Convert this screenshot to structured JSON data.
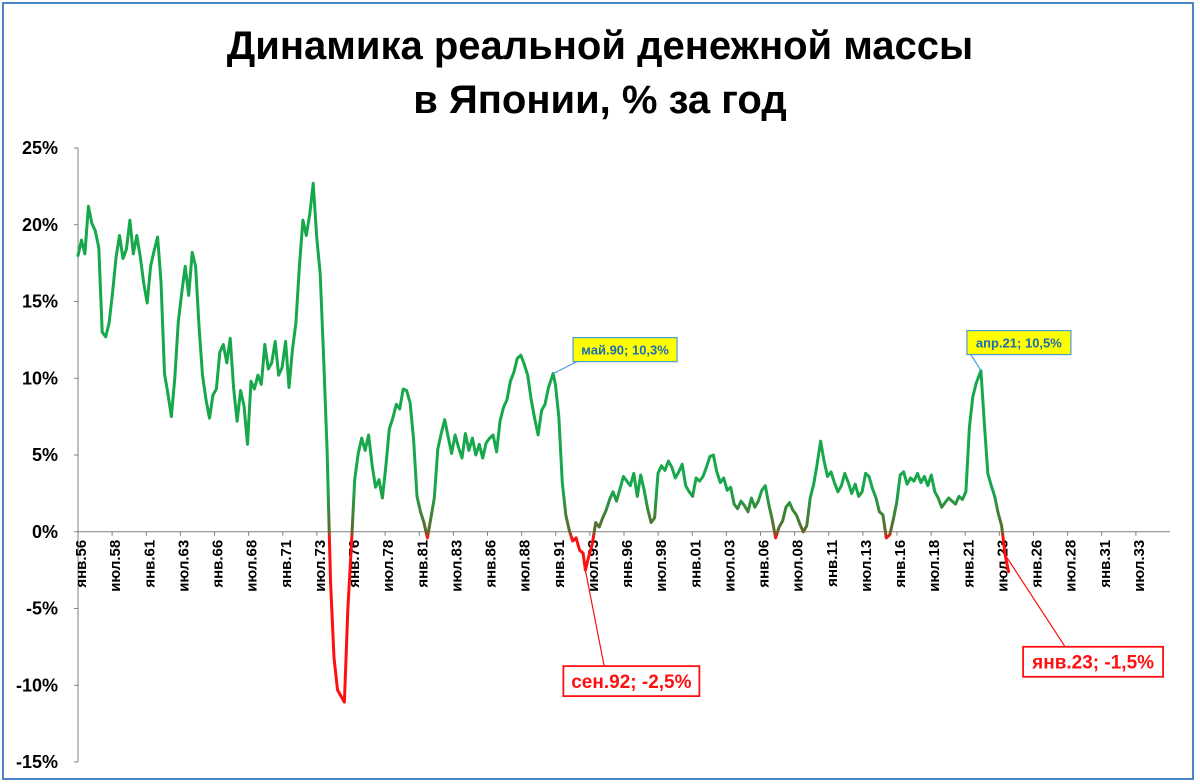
{
  "chart_data": {
    "type": "line",
    "title_line1": "Динамика реальной денежной массы",
    "title_line2": "в Японии, % за год",
    "xlabel": "",
    "ylabel": "",
    "ylim": [
      -15,
      25
    ],
    "y_ticks": [
      25,
      20,
      15,
      10,
      5,
      0,
      -5,
      -10,
      -15
    ],
    "y_tick_labels": [
      "25%",
      "20%",
      "15%",
      "10%",
      "5%",
      "0%",
      "-5%",
      "-10%",
      "-15%"
    ],
    "x_start": "1956-01",
    "x_end": "2034-12",
    "x_tick_labels": [
      "янв.56",
      "июл.58",
      "янв.61",
      "июл.63",
      "янв.66",
      "июл.68",
      "янв.71",
      "июл.73",
      "янв.76",
      "июл.78",
      "янв.81",
      "июл.83",
      "янв.86",
      "июл.88",
      "янв.91",
      "июл.93",
      "янв.96",
      "июл.98",
      "янв.01",
      "июл.03",
      "янв.06",
      "июл.08",
      "янв.11",
      "июл.13",
      "янв.16",
      "июл.18",
      "янв.21",
      "июл.23",
      "янв.26",
      "июл.28",
      "янв.31",
      "июл.33"
    ],
    "grid": false,
    "legend": "none",
    "line_colors": {
      "positive": "#16a84a",
      "negative": "#ff1010"
    },
    "series": [
      {
        "points": [
          [
            "1956-01",
            18.0
          ],
          [
            "1956-04",
            19.0
          ],
          [
            "1956-07",
            18.1
          ],
          [
            "1956-10",
            21.2
          ],
          [
            "1957-01",
            20.1
          ],
          [
            "1957-04",
            19.6
          ],
          [
            "1957-07",
            18.5
          ],
          [
            "1957-10",
            13.0
          ],
          [
            "1958-01",
            12.7
          ],
          [
            "1958-04",
            13.6
          ],
          [
            "1958-07",
            15.6
          ],
          [
            "1958-10",
            17.9
          ],
          [
            "1959-01",
            19.3
          ],
          [
            "1959-04",
            17.8
          ],
          [
            "1959-07",
            18.4
          ],
          [
            "1959-10",
            20.3
          ],
          [
            "1960-01",
            18.1
          ],
          [
            "1960-04",
            19.3
          ],
          [
            "1960-07",
            17.9
          ],
          [
            "1960-10",
            16.2
          ],
          [
            "1961-01",
            14.9
          ],
          [
            "1961-04",
            17.3
          ],
          [
            "1961-07",
            18.3
          ],
          [
            "1961-10",
            19.2
          ],
          [
            "1962-01",
            16.3
          ],
          [
            "1962-04",
            10.3
          ],
          [
            "1962-07",
            9.0
          ],
          [
            "1962-10",
            7.5
          ],
          [
            "1963-01",
            10.1
          ],
          [
            "1963-04",
            13.7
          ],
          [
            "1963-07",
            15.6
          ],
          [
            "1963-10",
            17.3
          ],
          [
            "1964-01",
            15.4
          ],
          [
            "1964-04",
            18.2
          ],
          [
            "1964-07",
            17.3
          ],
          [
            "1964-10",
            13.3
          ],
          [
            "1965-01",
            10.2
          ],
          [
            "1965-04",
            8.6
          ],
          [
            "1965-07",
            7.4
          ],
          [
            "1965-10",
            8.9
          ],
          [
            "1966-01",
            9.3
          ],
          [
            "1966-04",
            11.7
          ],
          [
            "1966-07",
            12.2
          ],
          [
            "1966-10",
            11.0
          ],
          [
            "1967-01",
            12.6
          ],
          [
            "1967-04",
            9.3
          ],
          [
            "1967-07",
            7.2
          ],
          [
            "1967-10",
            9.2
          ],
          [
            "1968-01",
            8.2
          ],
          [
            "1968-04",
            5.7
          ],
          [
            "1968-07",
            9.8
          ],
          [
            "1968-10",
            9.3
          ],
          [
            "1969-01",
            10.2
          ],
          [
            "1969-04",
            9.6
          ],
          [
            "1969-07",
            12.2
          ],
          [
            "1969-10",
            10.6
          ],
          [
            "1970-01",
            11.0
          ],
          [
            "1970-04",
            12.4
          ],
          [
            "1970-07",
            10.2
          ],
          [
            "1970-10",
            10.7
          ],
          [
            "1971-01",
            12.4
          ],
          [
            "1971-04",
            9.4
          ],
          [
            "1971-07",
            11.9
          ],
          [
            "1971-10",
            13.6
          ],
          [
            "1972-01",
            17.3
          ],
          [
            "1972-04",
            20.3
          ],
          [
            "1972-07",
            19.3
          ],
          [
            "1972-10",
            20.7
          ],
          [
            "1973-01",
            22.7
          ],
          [
            "1973-04",
            19.2
          ],
          [
            "1973-07",
            16.8
          ],
          [
            "1973-10",
            11.4
          ],
          [
            "1974-01",
            5.3
          ],
          [
            "1974-04",
            -3.2
          ],
          [
            "1974-07",
            -8.2
          ],
          [
            "1974-10",
            -10.3
          ],
          [
            "1975-01",
            -10.7
          ],
          [
            "1975-04",
            -11.1
          ],
          [
            "1975-07",
            -5.1
          ],
          [
            "1975-10",
            -1.0
          ],
          [
            "1976-01",
            3.4
          ],
          [
            "1976-04",
            5.1
          ],
          [
            "1976-07",
            6.1
          ],
          [
            "1976-10",
            5.3
          ],
          [
            "1977-01",
            6.3
          ],
          [
            "1977-04",
            4.4
          ],
          [
            "1977-07",
            2.9
          ],
          [
            "1977-10",
            3.4
          ],
          [
            "1978-01",
            2.2
          ],
          [
            "1978-04",
            4.3
          ],
          [
            "1978-07",
            6.7
          ],
          [
            "1978-10",
            7.4
          ],
          [
            "1979-01",
            8.3
          ],
          [
            "1979-04",
            8.0
          ],
          [
            "1979-07",
            9.3
          ],
          [
            "1979-10",
            9.2
          ],
          [
            "1980-01",
            8.4
          ],
          [
            "1980-04",
            6.0
          ],
          [
            "1980-07",
            2.3
          ],
          [
            "1980-10",
            1.3
          ],
          [
            "1981-01",
            0.6
          ],
          [
            "1981-04",
            -0.4
          ],
          [
            "1981-07",
            0.9
          ],
          [
            "1981-10",
            2.2
          ],
          [
            "1982-01",
            5.4
          ],
          [
            "1982-04",
            6.4
          ],
          [
            "1982-07",
            7.3
          ],
          [
            "1982-10",
            6.2
          ],
          [
            "1983-01",
            5.1
          ],
          [
            "1983-04",
            6.3
          ],
          [
            "1983-07",
            5.5
          ],
          [
            "1983-10",
            4.8
          ],
          [
            "1984-01",
            6.4
          ],
          [
            "1984-04",
            5.3
          ],
          [
            "1984-07",
            6.1
          ],
          [
            "1984-10",
            5.0
          ],
          [
            "1985-01",
            5.7
          ],
          [
            "1985-04",
            4.8
          ],
          [
            "1985-07",
            5.8
          ],
          [
            "1985-10",
            6.1
          ],
          [
            "1986-01",
            6.3
          ],
          [
            "1986-04",
            5.2
          ],
          [
            "1986-07",
            7.2
          ],
          [
            "1986-10",
            8.1
          ],
          [
            "1987-01",
            8.6
          ],
          [
            "1987-04",
            9.8
          ],
          [
            "1987-07",
            10.4
          ],
          [
            "1987-10",
            11.3
          ],
          [
            "1988-01",
            11.5
          ],
          [
            "1988-04",
            10.9
          ],
          [
            "1988-07",
            10.2
          ],
          [
            "1988-10",
            8.6
          ],
          [
            "1989-01",
            7.4
          ],
          [
            "1989-04",
            6.3
          ],
          [
            "1989-07",
            7.9
          ],
          [
            "1989-10",
            8.3
          ],
          [
            "1990-01",
            9.4
          ],
          [
            "1990-05",
            10.3
          ],
          [
            "1990-07",
            9.6
          ],
          [
            "1990-10",
            7.5
          ],
          [
            "1991-01",
            3.2
          ],
          [
            "1991-04",
            1.1
          ],
          [
            "1991-07",
            0.1
          ],
          [
            "1991-10",
            -0.6
          ],
          [
            "1992-01",
            -0.4
          ],
          [
            "1992-04",
            -1.2
          ],
          [
            "1992-07",
            -1.4
          ],
          [
            "1992-09",
            -2.5
          ],
          [
            "1992-12",
            -1.6
          ],
          [
            "1993-03",
            -0.8
          ],
          [
            "1993-06",
            0.6
          ],
          [
            "1993-09",
            0.3
          ],
          [
            "1993-12",
            0.9
          ],
          [
            "1994-03",
            1.4
          ],
          [
            "1994-06",
            2.1
          ],
          [
            "1994-09",
            2.6
          ],
          [
            "1994-12",
            2.0
          ],
          [
            "1995-03",
            2.8
          ],
          [
            "1995-06",
            3.6
          ],
          [
            "1995-09",
            3.3
          ],
          [
            "1995-12",
            3.0
          ],
          [
            "1996-03",
            3.8
          ],
          [
            "1996-06",
            2.3
          ],
          [
            "1996-09",
            3.7
          ],
          [
            "1996-12",
            2.7
          ],
          [
            "1997-03",
            1.5
          ],
          [
            "1997-06",
            0.6
          ],
          [
            "1997-09",
            0.9
          ],
          [
            "1997-12",
            3.8
          ],
          [
            "1998-03",
            4.3
          ],
          [
            "1998-06",
            4.0
          ],
          [
            "1998-09",
            4.6
          ],
          [
            "1998-12",
            4.2
          ],
          [
            "1999-03",
            3.5
          ],
          [
            "1999-06",
            3.9
          ],
          [
            "1999-09",
            4.4
          ],
          [
            "1999-12",
            3.0
          ],
          [
            "2000-03",
            2.6
          ],
          [
            "2000-06",
            2.3
          ],
          [
            "2000-09",
            3.5
          ],
          [
            "2000-12",
            3.3
          ],
          [
            "2001-03",
            3.6
          ],
          [
            "2001-06",
            4.2
          ],
          [
            "2001-09",
            4.9
          ],
          [
            "2001-12",
            5.0
          ],
          [
            "2002-03",
            3.9
          ],
          [
            "2002-06",
            3.2
          ],
          [
            "2002-09",
            3.5
          ],
          [
            "2002-12",
            2.7
          ],
          [
            "2003-03",
            2.9
          ],
          [
            "2003-06",
            1.8
          ],
          [
            "2003-09",
            1.5
          ],
          [
            "2003-12",
            2.0
          ],
          [
            "2004-03",
            1.7
          ],
          [
            "2004-06",
            1.3
          ],
          [
            "2004-09",
            2.2
          ],
          [
            "2004-12",
            1.6
          ],
          [
            "2005-03",
            2.0
          ],
          [
            "2005-06",
            2.7
          ],
          [
            "2005-09",
            3.0
          ],
          [
            "2005-12",
            1.8
          ],
          [
            "2006-03",
            0.8
          ],
          [
            "2006-06",
            -0.4
          ],
          [
            "2006-09",
            0.3
          ],
          [
            "2006-12",
            0.7
          ],
          [
            "2007-03",
            1.6
          ],
          [
            "2007-06",
            1.9
          ],
          [
            "2007-09",
            1.4
          ],
          [
            "2007-12",
            1.1
          ],
          [
            "2008-03",
            0.5
          ],
          [
            "2008-06",
            0.0
          ],
          [
            "2008-09",
            0.4
          ],
          [
            "2008-12",
            2.2
          ],
          [
            "2009-03",
            3.1
          ],
          [
            "2009-06",
            4.4
          ],
          [
            "2009-09",
            5.9
          ],
          [
            "2009-12",
            4.6
          ],
          [
            "2010-03",
            3.6
          ],
          [
            "2010-06",
            3.9
          ],
          [
            "2010-09",
            3.2
          ],
          [
            "2010-12",
            2.6
          ],
          [
            "2011-03",
            3.0
          ],
          [
            "2011-06",
            3.8
          ],
          [
            "2011-09",
            3.2
          ],
          [
            "2011-12",
            2.5
          ],
          [
            "2012-03",
            3.1
          ],
          [
            "2012-06",
            2.3
          ],
          [
            "2012-09",
            2.6
          ],
          [
            "2012-12",
            3.8
          ],
          [
            "2013-03",
            3.6
          ],
          [
            "2013-06",
            2.8
          ],
          [
            "2013-09",
            2.2
          ],
          [
            "2013-12",
            1.3
          ],
          [
            "2014-03",
            1.1
          ],
          [
            "2014-06",
            -0.4
          ],
          [
            "2014-09",
            -0.2
          ],
          [
            "2014-12",
            0.8
          ],
          [
            "2015-03",
            1.9
          ],
          [
            "2015-06",
            3.7
          ],
          [
            "2015-09",
            3.9
          ],
          [
            "2015-12",
            3.1
          ],
          [
            "2016-03",
            3.5
          ],
          [
            "2016-06",
            3.3
          ],
          [
            "2016-09",
            3.8
          ],
          [
            "2016-12",
            3.2
          ],
          [
            "2017-03",
            3.6
          ],
          [
            "2017-06",
            3.0
          ],
          [
            "2017-09",
            3.7
          ],
          [
            "2017-12",
            2.6
          ],
          [
            "2018-03",
            2.2
          ],
          [
            "2018-06",
            1.6
          ],
          [
            "2018-09",
            1.9
          ],
          [
            "2018-12",
            2.2
          ],
          [
            "2019-03",
            2.0
          ],
          [
            "2019-06",
            1.8
          ],
          [
            "2019-09",
            2.3
          ],
          [
            "2019-12",
            2.1
          ],
          [
            "2020-03",
            2.6
          ],
          [
            "2020-06",
            6.8
          ],
          [
            "2020-09",
            8.8
          ],
          [
            "2020-12",
            9.7
          ],
          [
            "2021-04",
            10.5
          ],
          [
            "2021-07",
            7.1
          ],
          [
            "2021-10",
            3.8
          ],
          [
            "2022-01",
            3.0
          ],
          [
            "2022-04",
            2.3
          ],
          [
            "2022-07",
            1.2
          ],
          [
            "2022-10",
            0.4
          ],
          [
            "2023-01",
            -1.5
          ],
          [
            "2023-04",
            -2.6
          ]
        ]
      }
    ],
    "annotations": [
      {
        "label": "май.90; 10,3%",
        "x": "1990-05",
        "y": 10.3,
        "style": "yellow"
      },
      {
        "label": "сен.92; -2,5%",
        "x": "1992-09",
        "y": -2.5,
        "style": "red"
      },
      {
        "label": "апр.21; 10,5%",
        "x": "2021-04",
        "y": 10.5,
        "style": "yellow"
      },
      {
        "label": "янв.23; -1,5%",
        "x": "2023-01",
        "y": -1.5,
        "style": "red"
      }
    ]
  }
}
